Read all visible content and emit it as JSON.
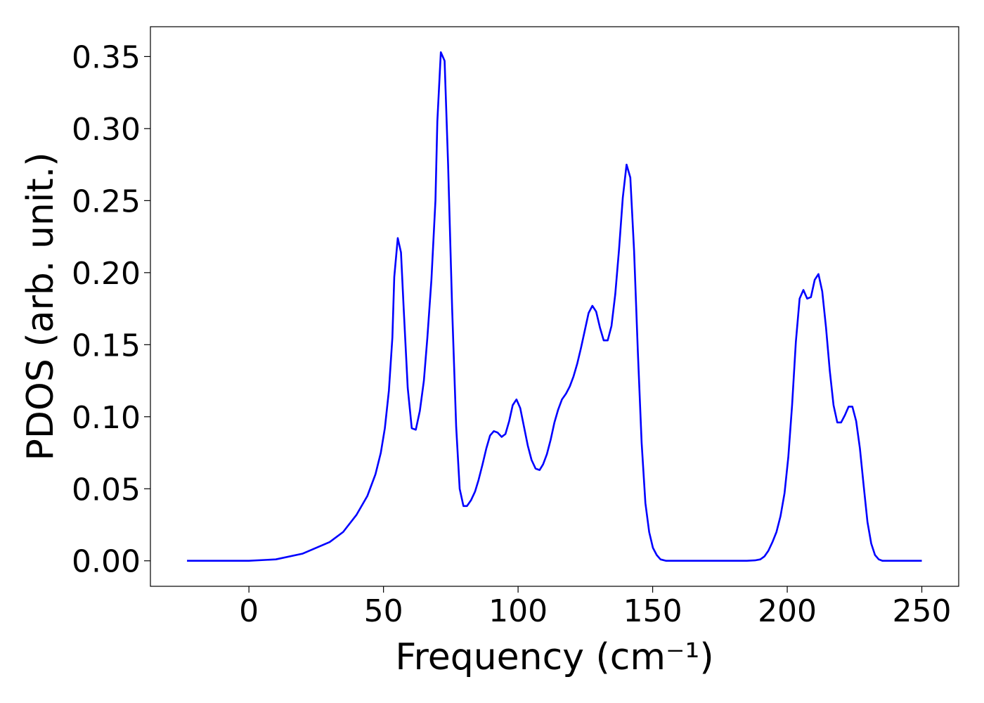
{
  "chart_data": {
    "type": "line",
    "xlabel": "Frequency (cm⁻¹)",
    "ylabel": "PDOS (arb. unit.)",
    "xlim": [
      -36.6,
      263.7
    ],
    "ylim": [
      -0.0177,
      0.3707
    ],
    "xticks": [
      0,
      50,
      100,
      150,
      200,
      250
    ],
    "yticks": [
      {
        "value": 0,
        "label": "0.00"
      },
      {
        "value": 0.05,
        "label": "0.05"
      },
      {
        "value": 0.1,
        "label": "0.10"
      },
      {
        "value": 0.15,
        "label": "0.15"
      },
      {
        "value": 0.2,
        "label": "0.20"
      },
      {
        "value": 0.25,
        "label": "0.25"
      },
      {
        "value": 0.3,
        "label": "0.30"
      },
      {
        "value": 0.35,
        "label": "0.35"
      }
    ],
    "series": [
      {
        "color": "#0000ff",
        "x": [
          -23,
          0,
          10,
          20,
          30,
          35,
          40,
          44,
          47,
          49,
          50.5,
          52,
          53.3,
          54,
          55.3,
          56.5,
          57.5,
          59,
          60.5,
          62,
          63.5,
          65,
          66.3,
          67.8,
          69.3,
          70,
          71.3,
          72.7,
          74,
          75.5,
          77,
          78.3,
          79.7,
          81,
          82.5,
          84,
          85.3,
          86.8,
          88.2,
          89.6,
          91,
          92.4,
          93.9,
          95.3,
          96.7,
          98,
          99.4,
          100.8,
          102.2,
          103.6,
          105,
          106.5,
          108,
          109.3,
          110.7,
          112.1,
          113.5,
          114.9,
          116.3,
          117.8,
          119.2,
          120.6,
          122,
          123.4,
          124.8,
          126.2,
          127.6,
          129,
          130.4,
          131.8,
          133.3,
          134.7,
          136.1,
          137.5,
          138.9,
          140.3,
          141.7,
          143.1,
          144.5,
          145.9,
          147.3,
          148.7,
          150.1,
          151.5,
          152.9,
          155,
          185,
          188,
          190,
          191.5,
          193,
          194.5,
          196,
          197.5,
          199,
          200.4,
          201.8,
          203.2,
          204.6,
          206,
          207.4,
          208.8,
          210.2,
          211.6,
          213,
          214.4,
          215.8,
          217.2,
          218.6,
          220,
          221.4,
          222.8,
          224.2,
          225.6,
          227,
          228.4,
          229.8,
          231.2,
          232.6,
          234,
          235.4,
          250
        ],
        "values": [
          0,
          0,
          0.001,
          0.005,
          0.013,
          0.02,
          0.032,
          0.045,
          0.06,
          0.075,
          0.092,
          0.118,
          0.155,
          0.197,
          0.224,
          0.214,
          0.175,
          0.12,
          0.092,
          0.091,
          0.104,
          0.125,
          0.155,
          0.195,
          0.25,
          0.305,
          0.353,
          0.347,
          0.275,
          0.175,
          0.093,
          0.05,
          0.038,
          0.038,
          0.042,
          0.048,
          0.056,
          0.067,
          0.078,
          0.087,
          0.09,
          0.089,
          0.086,
          0.088,
          0.097,
          0.108,
          0.112,
          0.106,
          0.093,
          0.08,
          0.07,
          0.064,
          0.063,
          0.067,
          0.074,
          0.084,
          0.096,
          0.105,
          0.112,
          0.116,
          0.121,
          0.128,
          0.137,
          0.148,
          0.16,
          0.172,
          0.177,
          0.173,
          0.162,
          0.153,
          0.153,
          0.163,
          0.185,
          0.216,
          0.252,
          0.275,
          0.266,
          0.215,
          0.145,
          0.082,
          0.04,
          0.02,
          0.009,
          0.004,
          0.001,
          0,
          0,
          0.0003,
          0.001,
          0.003,
          0.007,
          0.013,
          0.02,
          0.031,
          0.047,
          0.072,
          0.108,
          0.152,
          0.182,
          0.188,
          0.182,
          0.183,
          0.195,
          0.199,
          0.187,
          0.162,
          0.132,
          0.108,
          0.096,
          0.096,
          0.101,
          0.107,
          0.107,
          0.097,
          0.078,
          0.052,
          0.027,
          0.012,
          0.004,
          0.001,
          0,
          0
        ]
      }
    ]
  }
}
